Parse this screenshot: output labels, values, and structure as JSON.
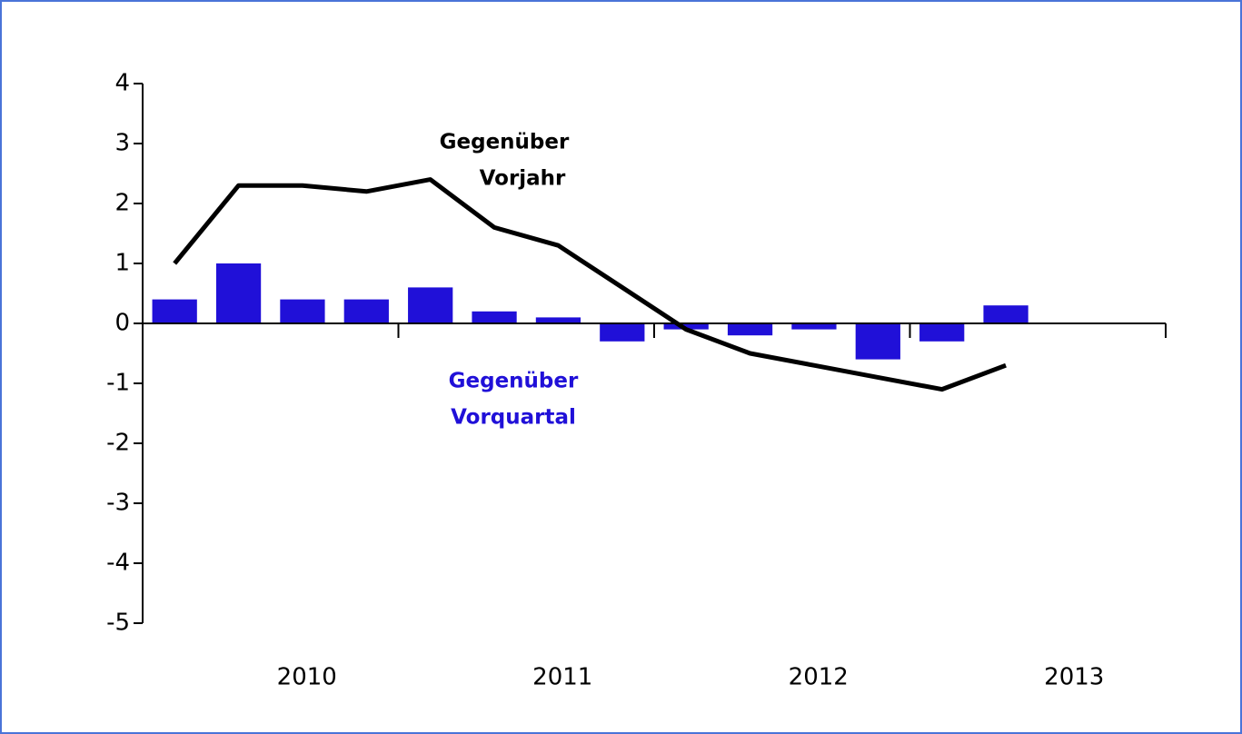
{
  "chart_data": {
    "type": "bar_line",
    "categories": [
      null,
      null,
      null,
      null,
      null,
      null,
      null,
      null,
      null,
      null,
      null,
      null,
      null,
      null,
      null,
      null
    ],
    "year_labels": [
      "2010",
      "2011",
      "2012",
      "2013"
    ],
    "series": [
      {
        "name": "Gegenüber Vorquartal",
        "type": "bar",
        "color": "#2010d8",
        "values": [
          0.4,
          1.0,
          0.4,
          0.4,
          0.6,
          0.2,
          0.1,
          -0.3,
          -0.1,
          -0.2,
          -0.1,
          -0.6,
          -0.3,
          0.3,
          null,
          null
        ]
      },
      {
        "name": "Gegenüber Vorjahr",
        "type": "line",
        "color": "#000000",
        "values": [
          1.0,
          2.3,
          2.3,
          2.2,
          2.4,
          1.6,
          1.3,
          0.6,
          -0.1,
          -0.5,
          -0.7,
          -0.9,
          -1.1,
          -0.7,
          null,
          null
        ]
      }
    ],
    "annotations": [
      {
        "lines": [
          "Gegenüber",
          "Vorjahr"
        ],
        "color": "#000000"
      },
      {
        "lines": [
          "Gegenüber",
          "Vorquartal"
        ],
        "color": "#2010d8"
      }
    ],
    "ylim": [
      -5,
      4
    ],
    "yticks": [
      -5,
      -4,
      -3,
      -2,
      -1,
      0,
      1,
      2,
      3,
      4
    ],
    "grid": false
  }
}
